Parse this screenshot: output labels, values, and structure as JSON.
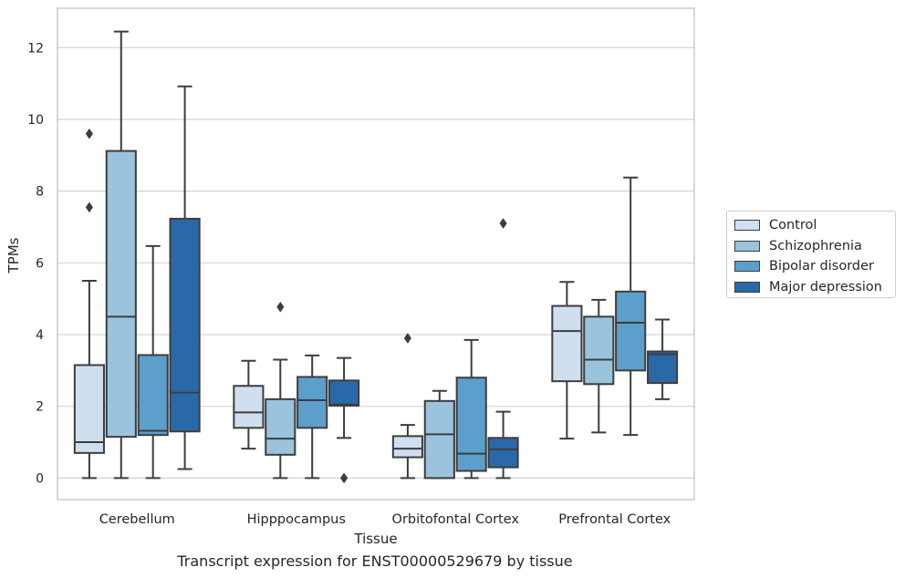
{
  "caption": "Transcript expression for ENST00000529679 by tissue",
  "chart_data": {
    "type": "box",
    "xlabel": "Tissue",
    "ylabel": "TPMs",
    "ylim": [
      -0.6,
      13.1
    ],
    "yticks": [
      0,
      2,
      4,
      6,
      8,
      10,
      12
    ],
    "grid": "horizontal",
    "legend_position": "right",
    "categories": [
      "Cerebellum",
      "Hipppocampus",
      "Orbitofontal Cortex",
      "Prefrontal Cortex"
    ],
    "series": [
      {
        "name": "Control",
        "color": "#d0dfef",
        "boxes": [
          {
            "whisker_low": 0.0,
            "q1": 0.7,
            "median": 1.0,
            "q3": 3.15,
            "whisker_high": 5.5,
            "outliers": [
              7.55,
              9.6
            ]
          },
          {
            "whisker_low": 0.82,
            "q1": 1.4,
            "median": 1.83,
            "q3": 2.57,
            "whisker_high": 3.27,
            "outliers": []
          },
          {
            "whisker_low": 0.0,
            "q1": 0.58,
            "median": 0.82,
            "q3": 1.17,
            "whisker_high": 1.48,
            "outliers": [
              3.9
            ]
          },
          {
            "whisker_low": 1.1,
            "q1": 2.7,
            "median": 4.1,
            "q3": 4.8,
            "whisker_high": 5.47,
            "outliers": []
          }
        ]
      },
      {
        "name": "Schizophrenia",
        "color": "#9ac3de",
        "boxes": [
          {
            "whisker_low": 0.0,
            "q1": 1.15,
            "median": 4.5,
            "q3": 9.12,
            "whisker_high": 12.45,
            "outliers": []
          },
          {
            "whisker_low": 0.0,
            "q1": 0.65,
            "median": 1.1,
            "q3": 2.2,
            "whisker_high": 3.3,
            "outliers": [
              4.77
            ]
          },
          {
            "whisker_low": 0.0,
            "q1": 0.0,
            "median": 1.22,
            "q3": 2.15,
            "whisker_high": 2.43,
            "outliers": []
          },
          {
            "whisker_low": 1.27,
            "q1": 2.62,
            "median": 3.3,
            "q3": 4.5,
            "whisker_high": 4.97,
            "outliers": []
          }
        ]
      },
      {
        "name": "Bipolar disorder",
        "color": "#5c9fcb",
        "boxes": [
          {
            "whisker_low": 0.0,
            "q1": 1.2,
            "median": 1.32,
            "q3": 3.43,
            "whisker_high": 6.47,
            "outliers": []
          },
          {
            "whisker_low": 0.0,
            "q1": 1.4,
            "median": 2.17,
            "q3": 2.82,
            "whisker_high": 3.42,
            "outliers": []
          },
          {
            "whisker_low": 0.0,
            "q1": 0.2,
            "median": 0.68,
            "q3": 2.8,
            "whisker_high": 3.85,
            "outliers": []
          },
          {
            "whisker_low": 1.2,
            "q1": 3.0,
            "median": 4.33,
            "q3": 5.2,
            "whisker_high": 8.38,
            "outliers": []
          }
        ]
      },
      {
        "name": "Major depression",
        "color": "#2a69a8",
        "boxes": [
          {
            "whisker_low": 0.25,
            "q1": 1.3,
            "median": 2.38,
            "q3": 7.23,
            "whisker_high": 10.92,
            "outliers": []
          },
          {
            "whisker_low": 1.12,
            "q1": 2.02,
            "median": 2.05,
            "q3": 2.72,
            "whisker_high": 3.35,
            "outliers": [
              0.0
            ]
          },
          {
            "whisker_low": 0.0,
            "q1": 0.3,
            "median": 0.8,
            "q3": 1.12,
            "whisker_high": 1.85,
            "outliers": [
              7.1
            ]
          },
          {
            "whisker_low": 2.2,
            "q1": 2.65,
            "median": 3.45,
            "q3": 3.53,
            "whisker_high": 4.42,
            "outliers": []
          }
        ]
      }
    ]
  }
}
